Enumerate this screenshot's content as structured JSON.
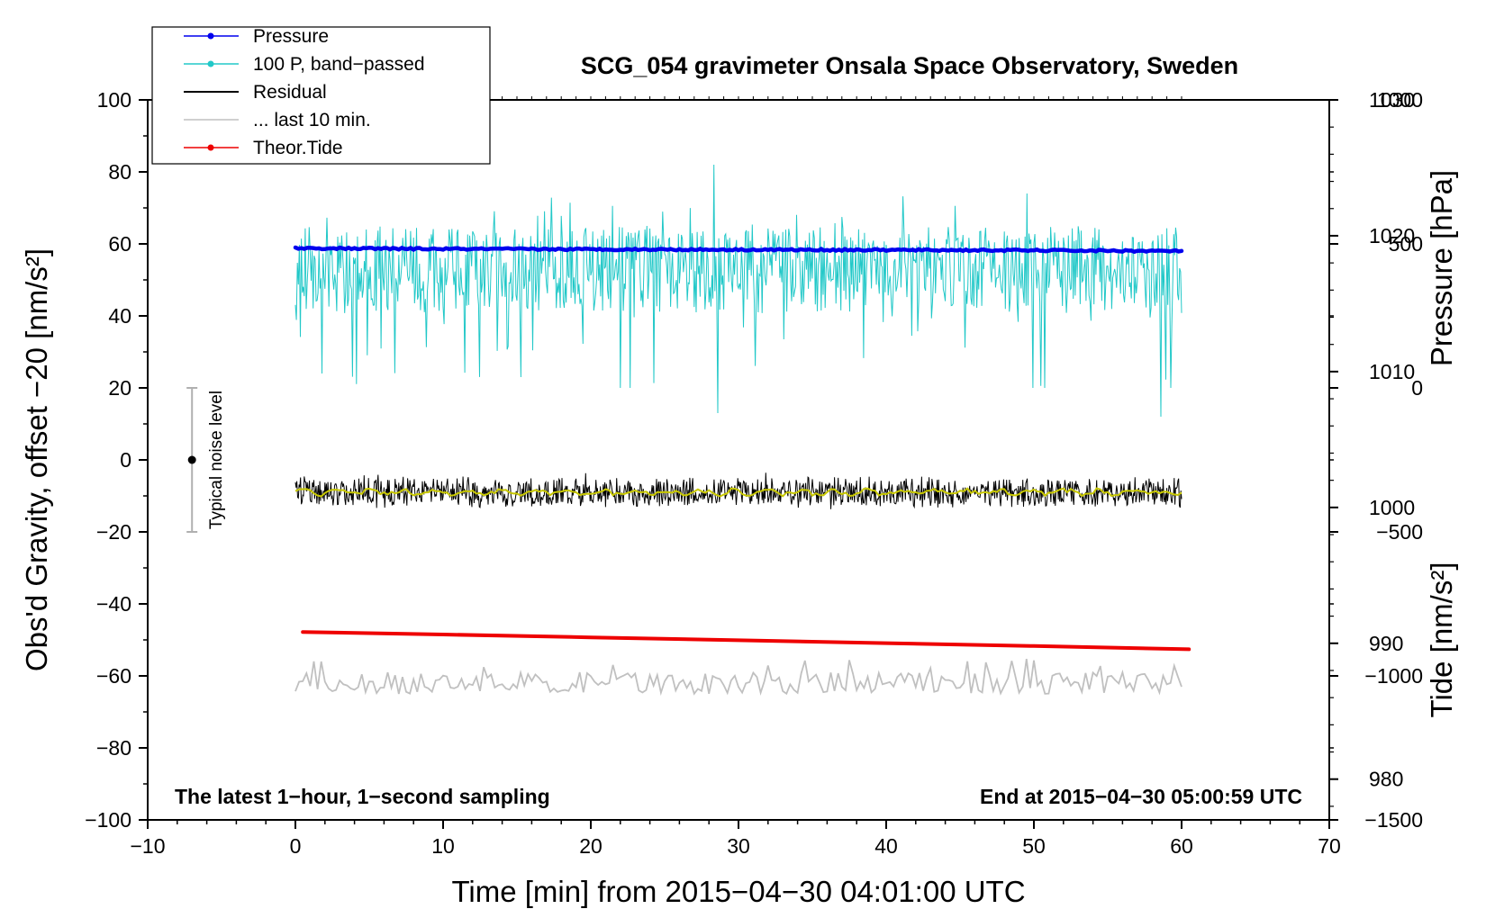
{
  "chart_data": {
    "type": "line",
    "title": "SCG_054 gravimeter Onsala Space Observatory, Sweden",
    "xlabel": "Time [min] from 2015−04−30 04:01:00 UTC",
    "ylabel": "Obs'd Gravity, offset −20 [nm/s²]",
    "y2label_pressure": "Pressure [hPa]",
    "y2label_tide": "Tide [nm/s²]",
    "xlim": [
      -10,
      70
    ],
    "ylim": [
      -100,
      100
    ],
    "x_ticks": [
      "−10",
      "0",
      "10",
      "20",
      "30",
      "40",
      "50",
      "60",
      "70"
    ],
    "y_ticks": [
      "100",
      "80",
      "60",
      "40",
      "20",
      "0",
      "−20",
      "−40",
      "−60",
      "−80",
      "−100"
    ],
    "pressure_axis": {
      "range": [
        977,
        1030
      ],
      "ticks": [
        "1030",
        "1020",
        "1010",
        "1000",
        "990",
        "980"
      ]
    },
    "tide_axis": {
      "range": [
        -1500,
        1000
      ],
      "ticks": [
        "1000",
        "500",
        "0",
        "−500",
        "−1000",
        "−1500"
      ]
    },
    "note_left": "The latest 1−hour, 1−second sampling",
    "note_right": "End at 2015−04−30 05:00:59 UTC",
    "noise_bar": {
      "label": "Typical noise level",
      "x": -7,
      "center": 0,
      "low": -20,
      "high": 20
    },
    "legend": [
      {
        "label": "Pressure",
        "color": "#0000ee",
        "marker": true
      },
      {
        "label": "100 P, band−passed",
        "color": "#22c8c8",
        "marker": true
      },
      {
        "label": "Residual",
        "color": "#000000",
        "marker": false
      },
      {
        "label": "... last 10 min.",
        "color": "#c0c0c0",
        "marker": false
      },
      {
        "label": "Theor.Tide",
        "color": "#ee0000",
        "marker": true
      }
    ],
    "series": [
      {
        "name": "Pressure",
        "color": "#0000ee",
        "axis": "gravity",
        "x": [
          0,
          10,
          20,
          30,
          40,
          50,
          60
        ],
        "values": [
          58.8,
          58.6,
          58.5,
          58.4,
          58.3,
          58.2,
          58.0
        ]
      },
      {
        "name": "100 P, band−passed",
        "color": "#22c8c8",
        "axis": "gravity",
        "baseline": 58,
        "min": 12,
        "max": 82,
        "x": [
          0,
          60
        ]
      },
      {
        "name": "Residual",
        "color": "#000000",
        "axis": "gravity",
        "baseline": -9,
        "min": -17,
        "max": -2,
        "x": [
          0,
          60
        ]
      },
      {
        "name": "Residual smoothed",
        "color": "#c8c800",
        "axis": "gravity",
        "baseline": -9,
        "x": [
          0,
          60
        ]
      },
      {
        "name": "... last 10 min.",
        "color": "#c0c0c0",
        "axis": "gravity",
        "baseline": -62,
        "min": -67,
        "max": -55,
        "x": [
          0,
          60
        ]
      },
      {
        "name": "Theor.Tide",
        "color": "#ee0000",
        "axis": "gravity",
        "x": [
          0.5,
          10,
          20,
          30,
          40,
          50,
          60.5
        ],
        "values": [
          -47.8,
          -48.5,
          -49.3,
          -50.1,
          -50.9,
          -51.7,
          -52.6
        ]
      }
    ]
  }
}
